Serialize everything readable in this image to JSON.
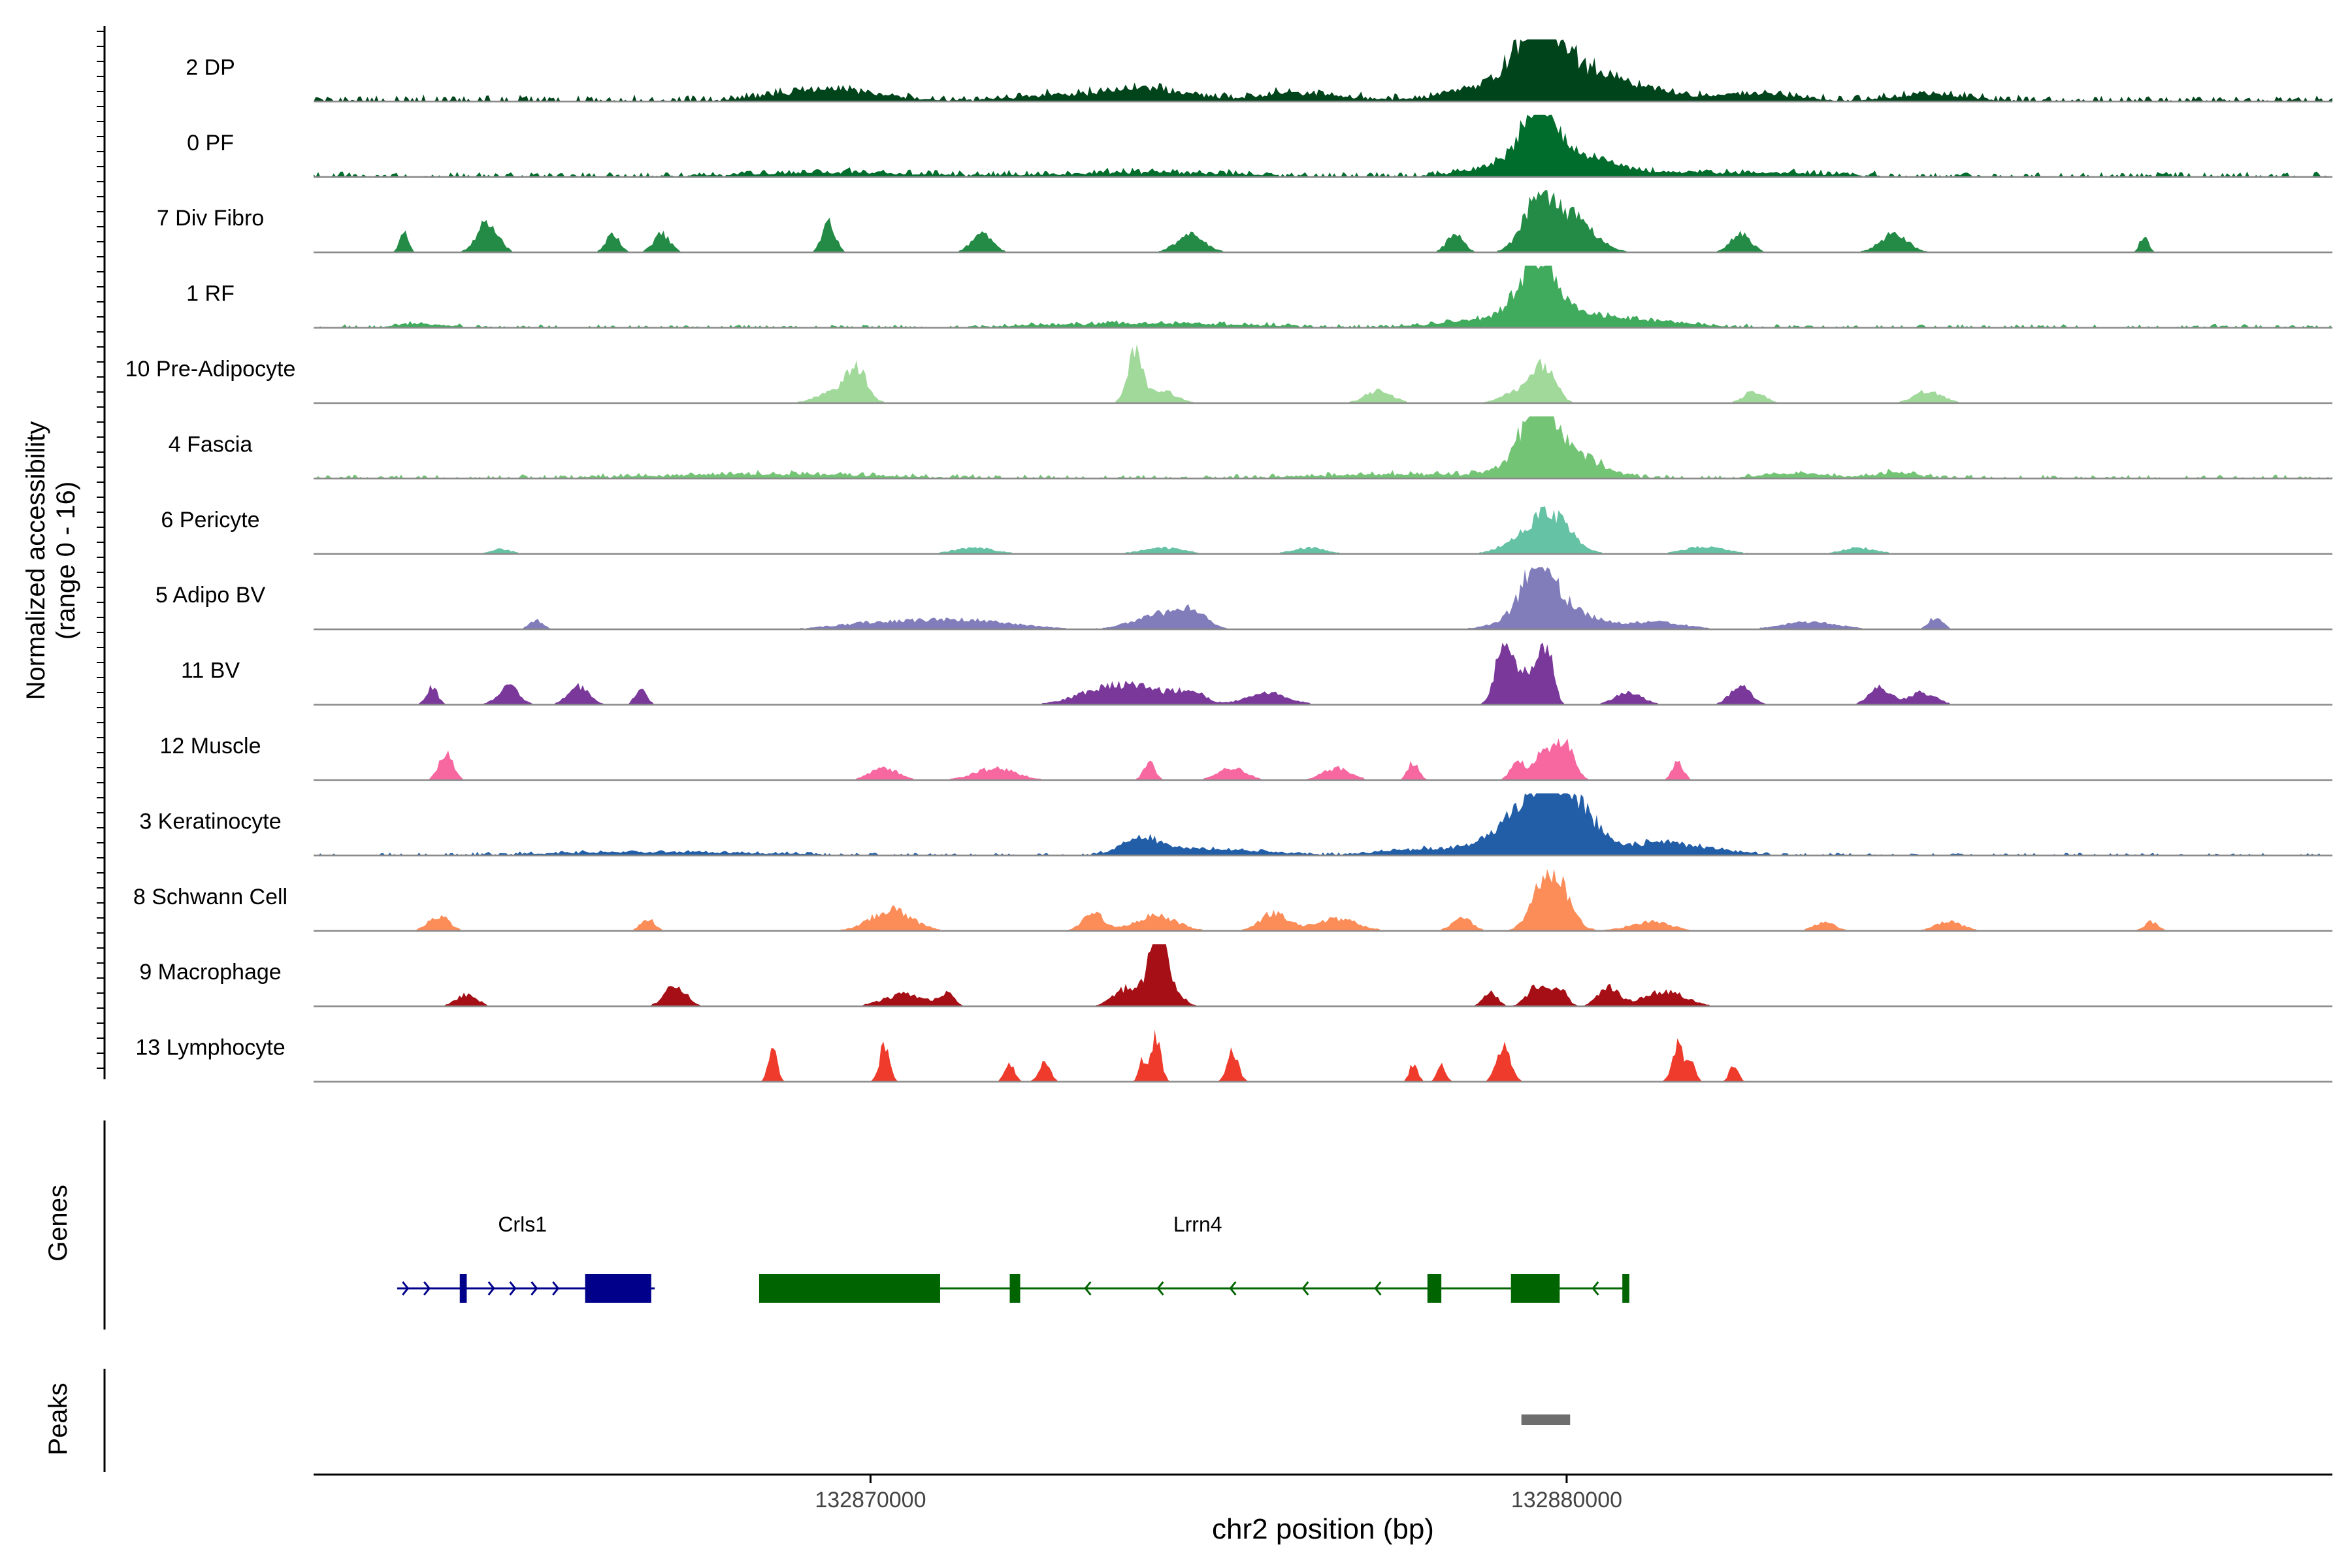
{
  "chart_data": {
    "type": "area",
    "title": "",
    "ylabel_line1": "Normalized accessibility",
    "ylabel_line2": "(range 0 - 16)",
    "xlabel": "chr2 position (bp)",
    "xlim": [
      132862000,
      132891000
    ],
    "ylim": [
      0,
      16
    ],
    "x_ticks": [
      132870000,
      132880000
    ],
    "x_tick_labels": [
      "132870000",
      "132880000"
    ],
    "tracks": [
      {
        "name": "2 DP",
        "color": "#00441b",
        "baseline": 0.1,
        "peaks": [
          [
            132869400,
            0.18,
            700
          ],
          [
            132873000,
            0.1,
            800
          ],
          [
            132874100,
            0.15,
            500
          ],
          [
            132876200,
            0.12,
            600
          ],
          [
            132879600,
            0.85,
            280
          ],
          [
            132879700,
            0.55,
            800
          ],
          [
            132880800,
            0.15,
            700
          ],
          [
            132882700,
            0.12,
            500
          ],
          [
            132885200,
            0.1,
            500
          ]
        ]
      },
      {
        "name": "0 PF",
        "color": "#006d2c",
        "baseline": 0.08,
        "peaks": [
          [
            132869500,
            0.06,
            1200
          ],
          [
            132874000,
            0.06,
            1200
          ],
          [
            132879600,
            0.95,
            200
          ],
          [
            132879800,
            0.45,
            700
          ],
          [
            132882500,
            0.06,
            1000
          ]
        ]
      },
      {
        "name": "7 Div Fibro",
        "color": "#238b45",
        "baseline": 0,
        "peaks": [
          [
            132863300,
            0.35,
            60
          ],
          [
            132864500,
            0.5,
            150
          ],
          [
            132866300,
            0.3,
            100
          ],
          [
            132867000,
            0.3,
            120
          ],
          [
            132869400,
            0.55,
            90
          ],
          [
            132871600,
            0.3,
            150
          ],
          [
            132874600,
            0.3,
            200
          ],
          [
            132878400,
            0.3,
            120
          ],
          [
            132879600,
            0.85,
            220
          ],
          [
            132880100,
            0.55,
            300
          ],
          [
            132882500,
            0.3,
            150
          ],
          [
            132884700,
            0.3,
            200
          ],
          [
            132888300,
            0.3,
            60
          ]
        ]
      },
      {
        "name": "1 RF",
        "color": "#41ab5d",
        "baseline": 0.05,
        "peaks": [
          [
            132863500,
            0.06,
            300
          ],
          [
            132874000,
            0.06,
            1500
          ],
          [
            132879600,
            0.9,
            260
          ],
          [
            132879700,
            0.25,
            900
          ],
          [
            132881200,
            0.06,
            700
          ]
        ]
      },
      {
        "name": "10 Pre-Adipocyte",
        "color": "#a1d99b",
        "baseline": 0,
        "peaks": [
          [
            132869800,
            0.5,
            150
          ],
          [
            132869500,
            0.2,
            250
          ],
          [
            132873800,
            0.8,
            110
          ],
          [
            132874200,
            0.2,
            200
          ],
          [
            132877300,
            0.2,
            200
          ],
          [
            132879400,
            0.25,
            250
          ],
          [
            132879700,
            0.5,
            150
          ],
          [
            132882700,
            0.2,
            150
          ],
          [
            132885200,
            0.2,
            200
          ]
        ]
      },
      {
        "name": "4 Fascia",
        "color": "#74c476",
        "baseline": 0.06,
        "peaks": [
          [
            132868500,
            0.06,
            1500
          ],
          [
            132877500,
            0.06,
            1000
          ],
          [
            132879600,
            0.95,
            200
          ],
          [
            132879800,
            0.55,
            500
          ],
          [
            132883300,
            0.07,
            500
          ],
          [
            132884700,
            0.08,
            300
          ]
        ]
      },
      {
        "name": "6 Pericyte",
        "color": "#66c2a4",
        "baseline": 0,
        "peaks": [
          [
            132864700,
            0.08,
            150
          ],
          [
            132871500,
            0.1,
            300
          ],
          [
            132874200,
            0.1,
            300
          ],
          [
            132876300,
            0.1,
            250
          ],
          [
            132879600,
            0.45,
            350
          ],
          [
            132879850,
            0.3,
            250
          ],
          [
            132882000,
            0.12,
            300
          ],
          [
            132884200,
            0.1,
            250
          ]
        ]
      },
      {
        "name": "5 Adipo BV",
        "color": "#807dba",
        "baseline": 0,
        "peaks": [
          [
            132865200,
            0.15,
            100
          ],
          [
            132870100,
            0.1,
            600
          ],
          [
            132871400,
            0.15,
            700
          ],
          [
            132874200,
            0.25,
            400
          ],
          [
            132874600,
            0.2,
            200
          ],
          [
            132879600,
            0.8,
            220
          ],
          [
            132879800,
            0.4,
            500
          ],
          [
            132881300,
            0.12,
            400
          ],
          [
            132883500,
            0.12,
            400
          ],
          [
            132885300,
            0.2,
            100
          ]
        ]
      },
      {
        "name": "11 BV",
        "color": "#7a389b",
        "baseline": 0,
        "peaks": [
          [
            132863700,
            0.3,
            80
          ],
          [
            132864800,
            0.3,
            150
          ],
          [
            132865800,
            0.3,
            150
          ],
          [
            132866700,
            0.3,
            80
          ],
          [
            132873300,
            0.2,
            400
          ],
          [
            132873900,
            0.25,
            400
          ],
          [
            132874600,
            0.2,
            200
          ],
          [
            132875700,
            0.2,
            300
          ],
          [
            132879100,
            1.0,
            120
          ],
          [
            132879400,
            0.5,
            150
          ],
          [
            132879700,
            1.0,
            100
          ],
          [
            132880900,
            0.2,
            200
          ],
          [
            132882500,
            0.3,
            150
          ],
          [
            132884500,
            0.3,
            150
          ],
          [
            132885100,
            0.2,
            200
          ]
        ]
      },
      {
        "name": "12 Muscle",
        "color": "#f768a1",
        "baseline": 0,
        "peaks": [
          [
            132863900,
            0.45,
            100
          ],
          [
            132870200,
            0.2,
            200
          ],
          [
            132871800,
            0.2,
            300
          ],
          [
            132874000,
            0.3,
            80
          ],
          [
            132875200,
            0.2,
            200
          ],
          [
            132876700,
            0.2,
            200
          ],
          [
            132877800,
            0.3,
            80
          ],
          [
            132879300,
            0.3,
            100
          ],
          [
            132879700,
            0.55,
            150
          ],
          [
            132880000,
            0.6,
            120
          ],
          [
            132881600,
            0.3,
            80
          ]
        ]
      },
      {
        "name": "3 Keratinocyte",
        "color": "#225ea8",
        "baseline": 0.04,
        "peaks": [
          [
            132867000,
            0.05,
            1500
          ],
          [
            132873900,
            0.25,
            250
          ],
          [
            132874800,
            0.1,
            800
          ],
          [
            132878000,
            0.1,
            600
          ],
          [
            132879600,
            0.9,
            500
          ],
          [
            132880000,
            0.55,
            400
          ],
          [
            132881300,
            0.2,
            300
          ],
          [
            132882000,
            0.12,
            400
          ]
        ]
      },
      {
        "name": "8 Schwann Cell",
        "color": "#fc8d59",
        "baseline": 0,
        "peaks": [
          [
            132863800,
            0.25,
            150
          ],
          [
            132866800,
            0.2,
            100
          ],
          [
            132870300,
            0.35,
            300
          ],
          [
            132873200,
            0.3,
            150
          ],
          [
            132874100,
            0.25,
            300
          ],
          [
            132875800,
            0.3,
            200
          ],
          [
            132876700,
            0.2,
            300
          ],
          [
            132878500,
            0.2,
            150
          ],
          [
            132879700,
            0.7,
            200
          ],
          [
            132879900,
            0.45,
            200
          ],
          [
            132881200,
            0.15,
            300
          ],
          [
            132883700,
            0.15,
            150
          ],
          [
            132885500,
            0.15,
            200
          ],
          [
            132888400,
            0.15,
            100
          ]
        ]
      },
      {
        "name": "9 Macrophage",
        "color": "#a50f15",
        "baseline": 0,
        "peaks": [
          [
            132864200,
            0.2,
            150
          ],
          [
            132867200,
            0.35,
            150
          ],
          [
            132870500,
            0.2,
            300
          ],
          [
            132871100,
            0.2,
            100
          ],
          [
            132873700,
            0.3,
            200
          ],
          [
            132874100,
            1.0,
            90
          ],
          [
            132874200,
            0.6,
            180
          ],
          [
            132878900,
            0.25,
            100
          ],
          [
            132879600,
            0.35,
            150
          ],
          [
            132879900,
            0.3,
            100
          ],
          [
            132880600,
            0.3,
            150
          ],
          [
            132881400,
            0.25,
            300
          ]
        ]
      },
      {
        "name": "13 Lymphocyte",
        "color": "#ef3b2c",
        "baseline": 0,
        "peaks": [
          [
            132868600,
            0.65,
            60
          ],
          [
            132870200,
            0.6,
            70
          ],
          [
            132872000,
            0.3,
            70
          ],
          [
            132872500,
            0.3,
            80
          ],
          [
            132873900,
            0.35,
            50
          ],
          [
            132874100,
            0.75,
            70
          ],
          [
            132875200,
            0.5,
            80
          ],
          [
            132877800,
            0.3,
            60
          ],
          [
            132878200,
            0.3,
            60
          ],
          [
            132879100,
            0.6,
            100
          ],
          [
            132881600,
            0.6,
            80
          ],
          [
            132881800,
            0.3,
            60
          ],
          [
            132882400,
            0.3,
            60
          ]
        ]
      }
    ],
    "genes_label": "Genes",
    "genes": [
      {
        "name": "Crls1",
        "strand": "+",
        "color": "#00008b",
        "start": 132863200,
        "end": 132866900,
        "label_x": 132865000,
        "exons": [
          [
            132864100,
            132864200
          ],
          [
            132865900,
            132866850
          ]
        ]
      },
      {
        "name": "Lrrn4",
        "strand": "-",
        "color": "#006400",
        "start": 132868400,
        "end": 132880900,
        "label_x": 132874700,
        "exons": [
          [
            132868400,
            132871000
          ],
          [
            132872000,
            132872150
          ],
          [
            132878000,
            132878200
          ],
          [
            132879200,
            132879900
          ],
          [
            132880800,
            132880900
          ]
        ]
      }
    ],
    "peaks_label": "Peaks",
    "peak_regions": [
      [
        132879350,
        132880050
      ]
    ],
    "peak_region_color": "#6e6e6e"
  }
}
